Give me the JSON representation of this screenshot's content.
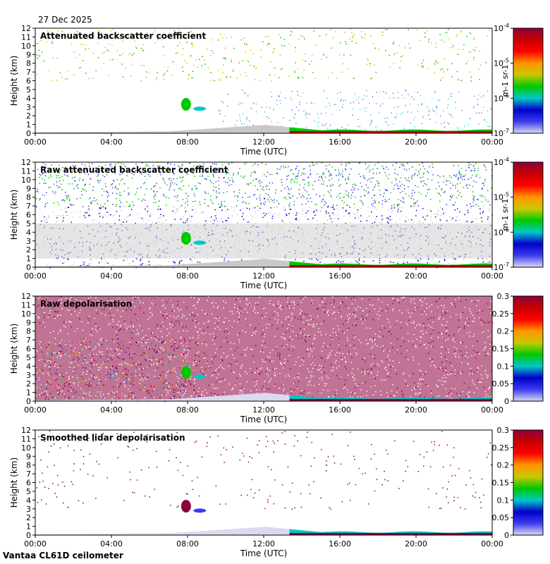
{
  "header": {
    "date": "27 Dec 2025"
  },
  "footer": {
    "instrument": "Vantaa CL61D ceilometer"
  },
  "colorscale": [
    "#d9d9f0",
    "#3c3cf0",
    "#0000c8",
    "#00c8c8",
    "#00c800",
    "#c8c800",
    "#ff9600",
    "#ff0000",
    "#c80000",
    "#8c003c"
  ],
  "chart_data": [
    {
      "type": "heatmap",
      "title": "Attenuated backscatter coefficient",
      "xlabel": "Time (UTC)",
      "ylabel": "Height (km)",
      "x_ticks": [
        "00:00",
        "04:00",
        "08:00",
        "12:00",
        "16:00",
        "20:00",
        "00:00"
      ],
      "y_ticks": [
        "0",
        "1",
        "2",
        "3",
        "4",
        "5",
        "6",
        "7",
        "8",
        "9",
        "10",
        "11",
        "12"
      ],
      "ylim": [
        0,
        12
      ],
      "colorbar": {
        "label": "m-1 sr-1",
        "ticks": [
          {
            "base": "10",
            "exp": "-7"
          },
          {
            "base": "10",
            "exp": "-6"
          },
          {
            "base": "10",
            "exp": "-5"
          },
          {
            "base": "10",
            "exp": "-4"
          }
        ]
      }
    },
    {
      "type": "heatmap",
      "title": "Raw attenuated backscatter coefficient",
      "xlabel": "Time (UTC)",
      "ylabel": "Height (km)",
      "x_ticks": [
        "00:00",
        "04:00",
        "08:00",
        "12:00",
        "16:00",
        "20:00",
        "00:00"
      ],
      "y_ticks": [
        "0",
        "1",
        "2",
        "3",
        "4",
        "5",
        "6",
        "7",
        "8",
        "9",
        "10",
        "11",
        "12"
      ],
      "ylim": [
        0,
        12
      ],
      "colorbar": {
        "label": "m-1 sr-1",
        "ticks": [
          {
            "base": "10",
            "exp": "-7"
          },
          {
            "base": "10",
            "exp": "-6"
          },
          {
            "base": "10",
            "exp": "-5"
          },
          {
            "base": "10",
            "exp": "-4"
          }
        ]
      }
    },
    {
      "type": "heatmap",
      "title": "Raw depolarisation",
      "xlabel": "Time (UTC)",
      "ylabel": "Height (km)",
      "x_ticks": [
        "00:00",
        "04:00",
        "08:00",
        "12:00",
        "16:00",
        "20:00",
        "00:00"
      ],
      "y_ticks": [
        "0",
        "1",
        "2",
        "3",
        "4",
        "5",
        "6",
        "7",
        "8",
        "9",
        "10",
        "11",
        "12"
      ],
      "ylim": [
        0,
        12
      ],
      "colorbar": {
        "label": "",
        "ticks": [
          "0",
          "0.05",
          "0.1",
          "0.15",
          "0.2",
          "0.25",
          "0.3"
        ]
      }
    },
    {
      "type": "heatmap",
      "title": "Smoothed lidar depolarisation",
      "xlabel": "Time (UTC)",
      "ylabel": "Height (km)",
      "x_ticks": [
        "00:00",
        "04:00",
        "08:00",
        "12:00",
        "16:00",
        "20:00",
        "00:00"
      ],
      "y_ticks": [
        "0",
        "1",
        "2",
        "3",
        "4",
        "5",
        "6",
        "7",
        "8",
        "9",
        "10",
        "11",
        "12"
      ],
      "ylim": [
        0,
        12
      ],
      "colorbar": {
        "label": "",
        "ticks": [
          "0",
          "0.05",
          "0.1",
          "0.15",
          "0.2",
          "0.25",
          "0.3"
        ]
      }
    }
  ]
}
